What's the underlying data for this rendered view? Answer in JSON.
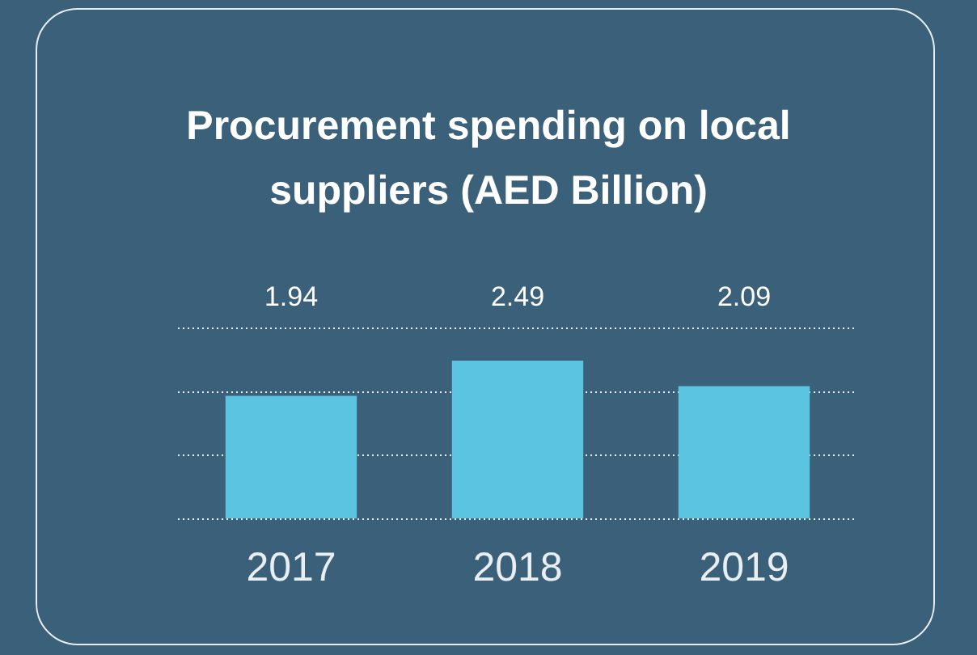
{
  "chart_data": {
    "type": "bar",
    "title": "Procurement spending on local suppliers (AED Billion)",
    "categories": [
      "2017",
      "2018",
      "2019"
    ],
    "values": [
      1.94,
      2.49,
      2.09
    ],
    "color": "#5bc4e0",
    "ylim": [
      0,
      3
    ],
    "yticks": [
      {
        "value": 0,
        "label": null
      },
      {
        "value": 1,
        "label": null
      },
      {
        "value": 2,
        "label": null
      },
      {
        "value": 3,
        "label": null
      }
    ],
    "tick_labels": "x",
    "grid": "y",
    "line_style": "dotted",
    "data_labels": true,
    "legend": false
  }
}
